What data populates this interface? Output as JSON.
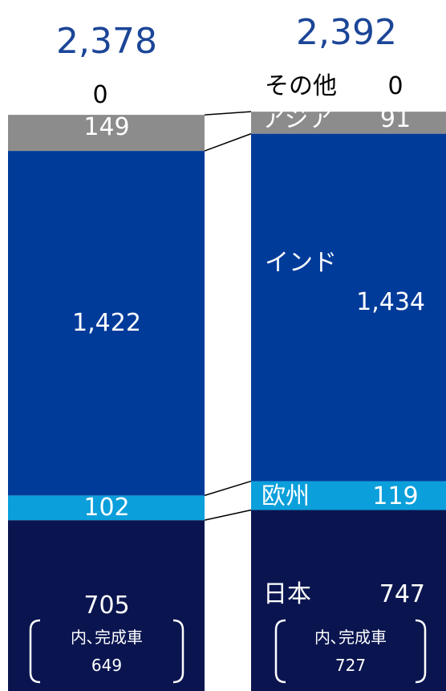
{
  "chart_data": {
    "type": "bar",
    "stacked": true,
    "categories": [
      "",
      ""
    ],
    "totals": [
      "2,378",
      "2,392"
    ],
    "series": [
      {
        "name": "日本",
        "values": [
          705,
          747
        ],
        "labels": [
          "705",
          "747"
        ],
        "color": "#0a1550"
      },
      {
        "name": "欧州",
        "values": [
          102,
          119
        ],
        "labels": [
          "102",
          "119"
        ],
        "color": "#0b9fdb"
      },
      {
        "name": "インド",
        "values": [
          1422,
          1434
        ],
        "labels": [
          "1,422",
          "1,434"
        ],
        "color": "#003b9a"
      },
      {
        "name": "アジア",
        "values": [
          149,
          91
        ],
        "labels": [
          "149",
          "91"
        ],
        "color": "#8c8c8c"
      },
      {
        "name": "その他",
        "values": [
          0,
          0
        ],
        "labels": [
          "0",
          "0"
        ],
        "color": "#6e6e6e"
      }
    ],
    "sub_note": {
      "label": "内､完成車",
      "values": [
        "649",
        "727"
      ]
    },
    "grid": false,
    "legend": "none"
  }
}
